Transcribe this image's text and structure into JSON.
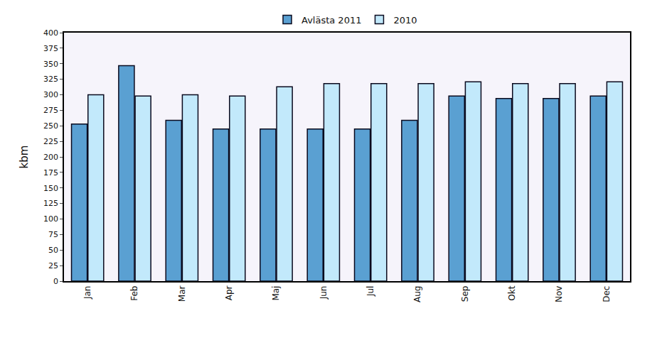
{
  "chart_data": {
    "type": "bar",
    "y_label": "kbm",
    "categories": [
      "Jan",
      "Feb",
      "Mar",
      "Apr",
      "Maj",
      "Jun",
      "Jul",
      "Aug",
      "Sep",
      "Okt",
      "Nov",
      "Dec"
    ],
    "series": [
      {
        "name": "Avlästa 2011",
        "color": "#5aa0d2",
        "values": [
          253,
          347,
          259,
          245,
          245,
          245,
          245,
          259,
          298,
          294,
          294,
          298
        ]
      },
      {
        "name": "2010",
        "color": "#c2e9fb",
        "values": [
          300,
          298,
          300,
          298,
          313,
          318,
          318,
          318,
          321,
          318,
          318,
          321
        ]
      }
    ],
    "ylim": [
      0,
      400
    ],
    "yticks": [
      0,
      25,
      50,
      75,
      100,
      125,
      150,
      175,
      200,
      225,
      250,
      275,
      300,
      325,
      350,
      375,
      400
    ],
    "grid": false,
    "legend": "top"
  }
}
